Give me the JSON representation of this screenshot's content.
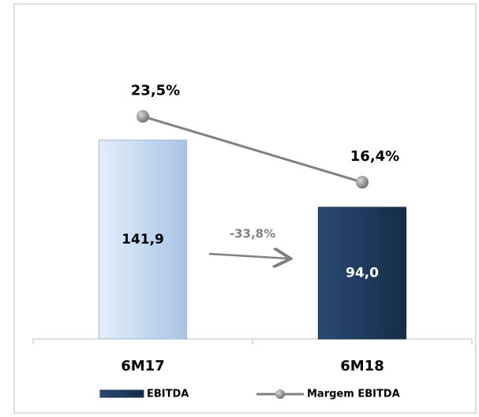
{
  "chart_data": {
    "type": "bar",
    "categories": [
      "6M17",
      "6M18"
    ],
    "series": [
      {
        "name": "EBITDA",
        "type": "bar",
        "colors": [
          "#c6d9f1",
          "#1f3b5e"
        ],
        "color": "#2c4a70",
        "values": [
          141.9,
          94.0
        ],
        "value_labels": [
          "141,9",
          "94,0"
        ]
      },
      {
        "name": "Margem EBITDA",
        "type": "line",
        "axis": "y2",
        "color": "#808080",
        "values": [
          23.5,
          16.4
        ],
        "value_labels": [
          "23,5%",
          "16,4%"
        ]
      }
    ],
    "ylim": [
      0,
      225
    ],
    "y2lim": [
      -0.5,
      33.5
    ],
    "annotation": "-33,8%"
  }
}
